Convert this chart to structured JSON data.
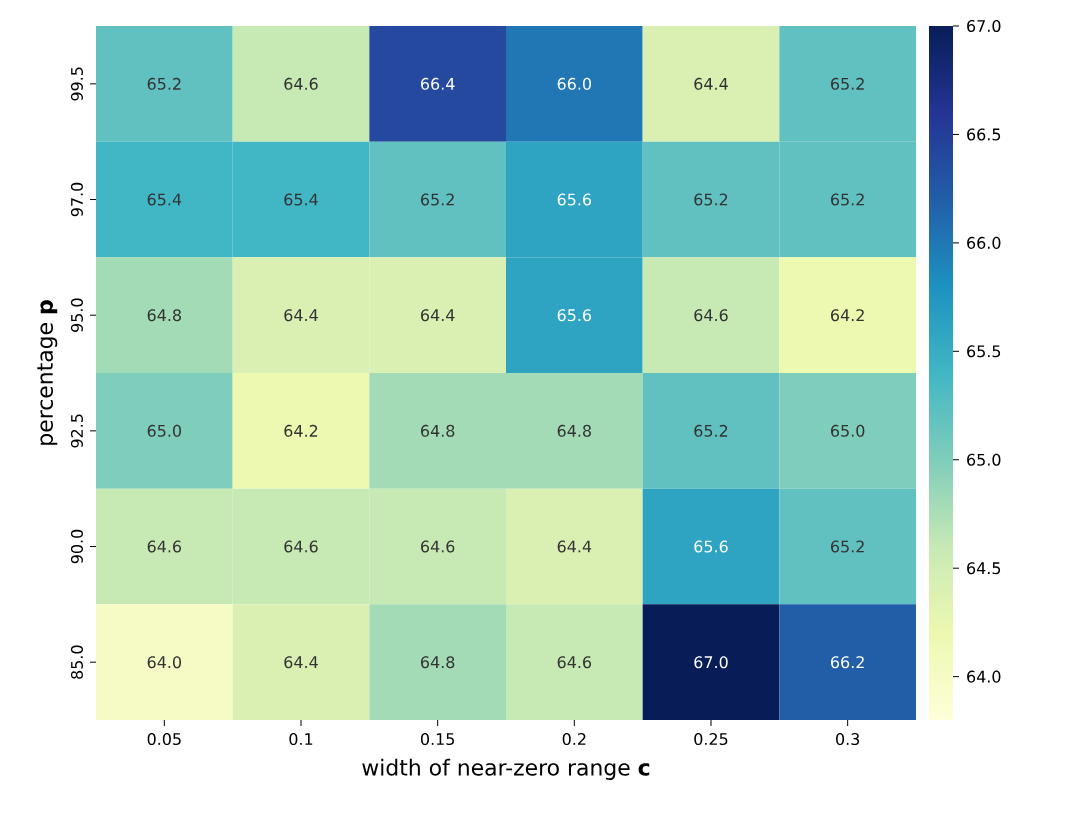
{
  "chart_data": {
    "type": "heatmap",
    "xlabel": "width of near-zero range **c**",
    "ylabel": "percentage **p**",
    "categories": [
      "0.05",
      "0.1",
      "0.15",
      "0.2",
      "0.25",
      "0.3"
    ],
    "y_categories": [
      "99.5",
      "97.0",
      "95.0",
      "92.5",
      "90.0",
      "85.0"
    ],
    "cells": [
      [
        65.2,
        64.6,
        66.4,
        66.0,
        64.4,
        65.2
      ],
      [
        65.4,
        65.4,
        65.2,
        65.6,
        65.2,
        65.2
      ],
      [
        64.8,
        64.4,
        64.4,
        65.6,
        64.6,
        64.2
      ],
      [
        65.0,
        64.2,
        64.8,
        64.8,
        65.2,
        65.0
      ],
      [
        64.6,
        64.6,
        64.6,
        64.4,
        65.6,
        65.2
      ],
      [
        64.0,
        64.4,
        64.8,
        64.6,
        67.0,
        66.2
      ]
    ],
    "cell_labels": [
      [
        "65.2",
        "64.6",
        "66.4",
        "66.0",
        "64.4",
        "65.2"
      ],
      [
        "65.4",
        "65.4",
        "65.2",
        "65.6",
        "65.2",
        "65.2"
      ],
      [
        "64.8",
        "64.4",
        "64.4",
        "65.6",
        "64.6",
        "64.2"
      ],
      [
        "65.0",
        "64.2",
        "64.8",
        "64.8",
        "65.2",
        "65.0"
      ],
      [
        "64.6",
        "64.6",
        "64.6",
        "64.4",
        "65.6",
        "65.2"
      ],
      [
        "64.0",
        "64.4",
        "64.8",
        "64.6",
        "67.0",
        "66.2"
      ]
    ],
    "clim": [
      63.8,
      67.0
    ],
    "cticks": [
      {
        "value": 64.0,
        "label": "64.0"
      },
      {
        "value": 64.5,
        "label": "64.5"
      },
      {
        "value": 65.0,
        "label": "65.0"
      },
      {
        "value": 65.5,
        "label": "65.5"
      },
      {
        "value": 66.0,
        "label": "66.0"
      },
      {
        "value": 66.5,
        "label": "66.5"
      },
      {
        "value": 67.0,
        "label": "67.0"
      }
    ]
  }
}
